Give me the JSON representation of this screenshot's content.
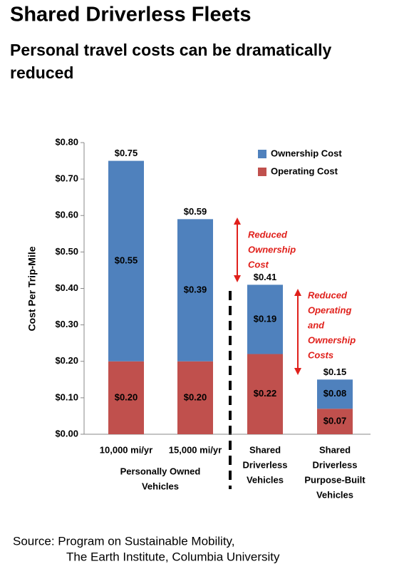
{
  "chart_data": {
    "type": "bar",
    "stacked": true,
    "title": "Shared Driverless Fleets",
    "subtitle": [
      "Personal travel costs can be dramatically",
      "reduced"
    ],
    "y_label": "Cost Per Trip-Mile",
    "categories": [
      [
        "10,000 mi/yr"
      ],
      [
        "15,000 mi/yr"
      ],
      [
        "Shared",
        "Driverless",
        "Vehicles"
      ],
      [
        "Shared",
        "Driverless",
        "Purpose-Built",
        "Vehicles"
      ]
    ],
    "group_label": [
      "Personally Owned",
      "Vehicles"
    ],
    "series": [
      {
        "name": "Operating Cost",
        "color": "#c0504d",
        "values": [
          0.2,
          0.2,
          0.22,
          0.07
        ],
        "value_labels": [
          "$0.20",
          "$0.20",
          "$0.22",
          "$0.07"
        ]
      },
      {
        "name": "Ownership Cost",
        "color": "#4f81bd",
        "values": [
          0.55,
          0.39,
          0.19,
          0.08
        ],
        "value_labels": [
          "$0.55",
          "$0.39",
          "$0.19",
          "$0.08"
        ]
      }
    ],
    "totals": {
      "values": [
        0.75,
        0.59,
        0.41,
        0.15
      ],
      "value_labels": [
        "$0.75",
        "$0.59",
        "$0.41",
        "$0.15"
      ]
    },
    "ylim": [
      0,
      0.8
    ],
    "yticks": [
      {
        "value": 0,
        "label": "$0.00"
      },
      {
        "value": 0.1,
        "label": "$0.10"
      },
      {
        "value": 0.2,
        "label": "$0.20"
      },
      {
        "value": 0.3,
        "label": "$0.30"
      },
      {
        "value": 0.4,
        "label": "$0.40"
      },
      {
        "value": 0.5,
        "label": "$0.50"
      },
      {
        "value": 0.6,
        "label": "$0.60"
      },
      {
        "value": 0.7,
        "label": "$0.70"
      },
      {
        "value": 0.8,
        "label": "$0.80"
      }
    ],
    "annotations": [
      [
        "Reduced",
        "Ownership",
        "Cost"
      ],
      [
        "Reduced",
        "Operating",
        "and",
        "Ownership",
        "Costs"
      ]
    ],
    "source": [
      "Source:  Program on Sustainable Mobility,",
      "The Earth Institute, Columbia University"
    ]
  }
}
